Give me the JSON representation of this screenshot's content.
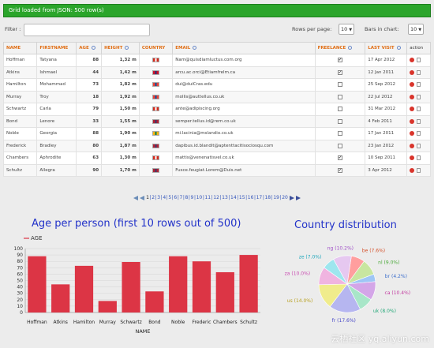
{
  "status": "Grid loaded from JSON: 500 row(s)",
  "toolbar": {
    "filter_label": "Filter :",
    "filter_value": "",
    "rows_per_page_label": "Rows per page:",
    "rows_per_page_value": "10",
    "bars_label": "Bars in chart:",
    "bars_value": "10"
  },
  "columns": [
    "NAME",
    "FIRSTNAME",
    "AGE",
    "HEIGHT",
    "COUNTRY",
    "EMAIL",
    "FREELANCE",
    "LAST VISIT",
    "action"
  ],
  "rows": [
    {
      "name": "Hoffman",
      "firstname": "Tatyana",
      "age": "88",
      "height": "1,32 m",
      "country": "ca",
      "email": "Nam@quisdiamluctus.com.org",
      "freelance": true,
      "last_visit": "17 Apr 2012"
    },
    {
      "name": "Atkins",
      "firstname": "Ishmael",
      "age": "44",
      "height": "1,42 m",
      "country": "uk",
      "email": "arcu.ac.orci@Etiamfrelm.ca",
      "freelance": true,
      "last_visit": "12 Jan 2011"
    },
    {
      "name": "Hamilton",
      "firstname": "Mohammad",
      "age": "73",
      "height": "1,82 m",
      "country": "fr",
      "email": "dui@duiCras.edu",
      "freelance": false,
      "last_visit": "25 Sep 2012"
    },
    {
      "name": "Murray",
      "firstname": "Troy",
      "age": "18",
      "height": "1,92 m",
      "country": "fr",
      "email": "mollis@auttellus.co.uk",
      "freelance": false,
      "last_visit": "22 Jul 2012"
    },
    {
      "name": "Schwartz",
      "firstname": "Carla",
      "age": "79",
      "height": "1,50 m",
      "country": "ca",
      "email": "ante@adipiscing.org",
      "freelance": false,
      "last_visit": "31 Mar 2012"
    },
    {
      "name": "Bond",
      "firstname": "Lenore",
      "age": "33",
      "height": "1,55 m",
      "country": "us",
      "email": "semper.tellus.id@rem.co.uk",
      "freelance": false,
      "last_visit": "4 Feb 2011"
    },
    {
      "name": "Noble",
      "firstname": "Georgia",
      "age": "88",
      "height": "1,90 m",
      "country": "za",
      "email": "mi.lacinia@mslandio.co.uk",
      "freelance": false,
      "last_visit": "17 Jan 2011"
    },
    {
      "name": "Frederick",
      "firstname": "Bradley",
      "age": "80",
      "height": "1,87 m",
      "country": "us",
      "email": "dapibus.id.blandit@aptenttacitisociosqu.com",
      "freelance": false,
      "last_visit": "23 Jan 2012"
    },
    {
      "name": "Chambers",
      "firstname": "Aphrodite",
      "age": "63",
      "height": "1,30 m",
      "country": "ca",
      "email": "mattis@venenatisvel.co.uk",
      "freelance": true,
      "last_visit": "10 Sep 2011"
    },
    {
      "name": "Schultz",
      "firstname": "Allegra",
      "age": "90",
      "height": "1,70 m",
      "country": "us",
      "email": "Fusce.feugiat.Lorem@Duis.net",
      "freelance": true,
      "last_visit": "3 Apr 2012"
    }
  ],
  "pager": {
    "pages": [
      "1",
      "2",
      "3",
      "4",
      "5",
      "6",
      "7",
      "8",
      "9",
      "10",
      "11",
      "12",
      "13",
      "14",
      "15",
      "16",
      "17",
      "18",
      "19",
      "20"
    ],
    "separator": "|"
  },
  "colors": {
    "status_bg": "#2ba52b",
    "header_text": "#e06d13",
    "bar": "#dc3545",
    "chart_title": "#2232c9"
  },
  "flag_colors": {
    "ca": [
      "#ffffff",
      "#d52b1e"
    ],
    "uk": [
      "#26347a",
      "#cf142b"
    ],
    "fr": [
      "#0055a4",
      "#ef4135"
    ],
    "us": [
      "#3c3b6e",
      "#b22234"
    ],
    "za": [
      "#007a4d",
      "#ffb612"
    ]
  },
  "chart_data": [
    {
      "type": "bar",
      "title": "Age per person (first 10 rows out of 500)",
      "xlabel": "NAME",
      "legend": "AGE",
      "categories": [
        "Hoffman",
        "Atkins",
        "Hamilton",
        "Murray",
        "Schwartz",
        "Bond",
        "Noble",
        "Frederick",
        "Chambers",
        "Schultz"
      ],
      "display_categories": [
        "Hoffman",
        "Atkins",
        "Hamilton",
        "Murray",
        "Schwartz",
        "Bond",
        "Noble",
        "Frederic",
        "Chambers",
        "Schultz"
      ],
      "series": [
        {
          "name": "AGE",
          "values": [
            88,
            44,
            73,
            18,
            79,
            33,
            88,
            80,
            63,
            90
          ]
        }
      ],
      "yticks": [
        0,
        10,
        20,
        30,
        40,
        50,
        60,
        70,
        80,
        90,
        100
      ],
      "ylim": [
        0,
        100
      ],
      "grid": true
    },
    {
      "type": "pie",
      "title": "Country distribution",
      "slices": [
        {
          "label": "be",
          "value": 7.6,
          "color": "#ff9e9e"
        },
        {
          "label": "nl",
          "value": 9.0,
          "color": "#c8e6a0"
        },
        {
          "label": "br",
          "value": 4.2,
          "color": "#9ec6f5"
        },
        {
          "label": "ca",
          "value": 10.4,
          "color": "#d4a6e8"
        },
        {
          "label": "uk",
          "value": 8.0,
          "color": "#a8e6c8"
        },
        {
          "label": "fr",
          "value": 17.6,
          "color": "#b6b6f0"
        },
        {
          "label": "us",
          "value": 14.0,
          "color": "#f0ec8c"
        },
        {
          "label": "za",
          "value": 10.0,
          "color": "#f0b4e0"
        },
        {
          "label": "ze",
          "value": 7.0,
          "color": "#9ee6ee"
        },
        {
          "label": "ng",
          "value": 10.2,
          "color": "#e6c8f0"
        }
      ],
      "slice_labels": [
        "be (7.6%)",
        "nl (9.0%)",
        "br (4.2%)",
        "ca (10.4%)",
        "uk (8.0%)",
        "fr (17.6%)",
        "us (14.0%)",
        "za (10.0%)",
        "ze (7.0%)",
        "ng (10.2%)"
      ]
    }
  ],
  "watermark": "云栖社区 yq.aliyun.com"
}
